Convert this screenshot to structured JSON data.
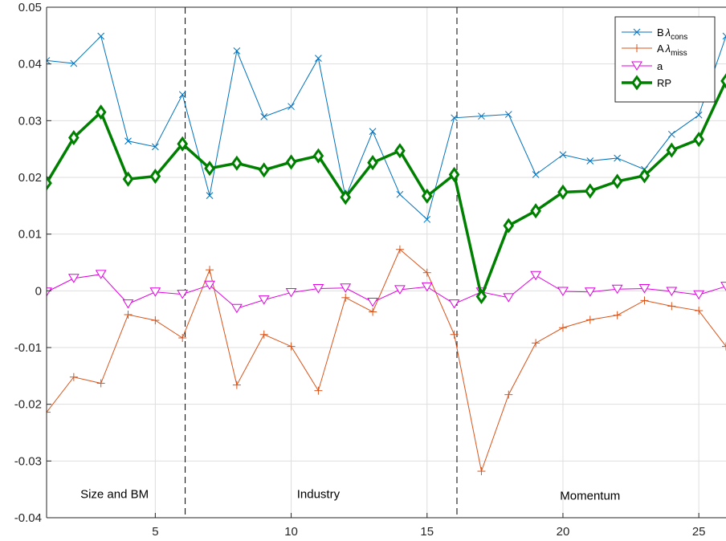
{
  "chart_data": {
    "type": "line",
    "title": "",
    "xlabel": "",
    "ylabel": "",
    "xlim": [
      1,
      26
    ],
    "ylim": [
      -0.04,
      0.05
    ],
    "xticks": [
      5,
      10,
      15,
      20,
      25
    ],
    "xtick_labels": [
      "5",
      "10",
      "15",
      "20",
      "25"
    ],
    "yticks": [
      -0.04,
      -0.03,
      -0.02,
      -0.01,
      0,
      0.01,
      0.02,
      0.03,
      0.04,
      0.05
    ],
    "ytick_labels": [
      "-0.04",
      "-0.03",
      "-0.02",
      "-0.01",
      "0",
      "0.01",
      "0.02",
      "0.03",
      "0.04",
      "0.05"
    ],
    "grid": true,
    "legend_position": "top-right",
    "x": [
      1,
      2,
      3,
      4,
      5,
      6,
      7,
      8,
      9,
      10,
      11,
      12,
      13,
      14,
      15,
      16,
      17,
      18,
      19,
      20,
      21,
      22,
      23,
      24,
      25,
      26
    ],
    "series": [
      {
        "name": "Bλcons",
        "legend_main": "B",
        "legend_lambda": "λ",
        "legend_sub": "cons",
        "color": "#0072BD",
        "marker": "x",
        "values": [
          0.0406,
          0.0401,
          0.0449,
          0.0264,
          0.0254,
          0.0346,
          0.0168,
          0.0423,
          0.0307,
          0.0325,
          0.041,
          0.0165,
          0.0281,
          0.017,
          0.0126,
          0.0305,
          0.0308,
          0.0311,
          0.0205,
          0.024,
          0.0229,
          0.0234,
          0.0214,
          0.0276,
          0.031,
          0.0449
        ]
      },
      {
        "name": "Aλmiss",
        "legend_main": "A",
        "legend_lambda": "λ",
        "legend_sub": "miss",
        "color": "#D95319",
        "marker": "+",
        "values": [
          -0.0214,
          -0.0152,
          -0.0163,
          -0.0042,
          -0.0052,
          -0.0083,
          0.0037,
          -0.0166,
          -0.0077,
          -0.0098,
          -0.0176,
          -0.0012,
          -0.0037,
          0.0073,
          0.0032,
          -0.0077,
          -0.0318,
          -0.0183,
          -0.0092,
          -0.0065,
          -0.0051,
          -0.0043,
          -0.0017,
          -0.0027,
          -0.0035,
          -0.0098
        ]
      },
      {
        "name": "a",
        "legend_main": "a",
        "color": "#E000E0",
        "marker": "triangle-down",
        "values": [
          -0.0002,
          0.0022,
          0.0029,
          -0.0023,
          -0.0002,
          -0.0006,
          0.001,
          -0.0031,
          -0.0016,
          -0.0003,
          0.0004,
          0.0005,
          -0.002,
          0.0002,
          0.0007,
          -0.0023,
          -0.0002,
          -0.0012,
          0.0027,
          -0.0001,
          -0.0002,
          0.0003,
          0.0004,
          -0.0001,
          -0.0007,
          0.0008
        ]
      },
      {
        "name": "RP",
        "legend_main": "RP",
        "color": "#008000",
        "marker": "diamond",
        "bold": true,
        "values": [
          0.019,
          0.027,
          0.0315,
          0.0197,
          0.0202,
          0.0259,
          0.0216,
          0.0225,
          0.0213,
          0.0227,
          0.0238,
          0.0165,
          0.0226,
          0.0247,
          0.0167,
          0.0205,
          -0.001,
          0.0115,
          0.0141,
          0.0174,
          0.0176,
          0.0193,
          0.0203,
          0.0248,
          0.0267,
          0.037
        ]
      }
    ],
    "vlines": [
      6.1,
      16.1
    ],
    "annotations": [
      {
        "text": "Size and BM",
        "x": 3.5,
        "y": -0.0365
      },
      {
        "text": "Industry",
        "x": 11.0,
        "y": -0.0365
      },
      {
        "text": "Momentum",
        "x": 21.0,
        "y": -0.0368
      }
    ]
  }
}
